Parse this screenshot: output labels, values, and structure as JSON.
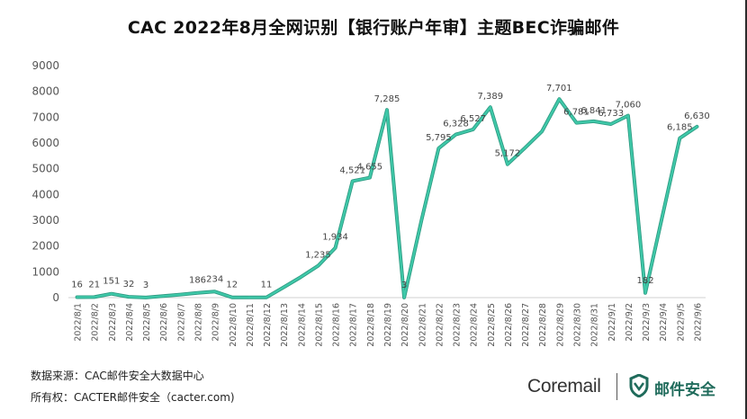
{
  "header": {
    "title": "CAC 2022年8月全网识别【银行账户年审】主题BEC诈骗邮件"
  },
  "footer": {
    "source": "数据来源：CAC邮件安全大数据中心",
    "copyright": "所有权：CACTER邮件安全（cacter.com)"
  },
  "logos": {
    "coremail": "Coremail",
    "mail_security": "邮件安全"
  },
  "chart_data": {
    "type": "line",
    "title": "CAC 2022年8月全网识别【银行账户年审】主题BEC诈骗邮件",
    "xlabel": "",
    "ylabel": "",
    "ylim": [
      0,
      9000
    ],
    "yticks": [
      0,
      1000,
      2000,
      3000,
      4000,
      5000,
      6000,
      7000,
      8000,
      9000
    ],
    "grid": false,
    "legend": "none",
    "line_color": "#3fc9a9",
    "categories": [
      "2022/8/1",
      "2022/8/2",
      "2022/8/3",
      "2022/8/4",
      "2022/8/5",
      "2022/8/6",
      "2022/8/7",
      "2022/8/8",
      "2022/8/9",
      "2022/8/10",
      "2022/8/11",
      "2022/8/12",
      "2022/8/13",
      "2022/8/14",
      "2022/8/15",
      "2022/8/16",
      "2022/8/17",
      "2022/8/18",
      "2022/8/19",
      "2022/8/20",
      "2022/8/21",
      "2022/8/22",
      "2022/8/23",
      "2022/8/24",
      "2022/8/25",
      "2022/8/26",
      "2022/8/27",
      "2022/8/28",
      "2022/8/29",
      "2022/8/30",
      "2022/8/31",
      "2022/9/1",
      "2022/9/2",
      "2022/9/3",
      "2022/9/4",
      "2022/9/5",
      "2022/9/6"
    ],
    "values": [
      16,
      21,
      151,
      32,
      3,
      60,
      120,
      186,
      234,
      12,
      8,
      11,
      400,
      800,
      1235,
      1934,
      4521,
      4655,
      7285,
      3,
      3000,
      5795,
      6328,
      6527,
      7389,
      5172,
      5800,
      6450,
      7701,
      6781,
      6841,
      6733,
      7060,
      182,
      3200,
      6185,
      6630
    ],
    "data_labels": [
      {
        "i": 0,
        "text": "16"
      },
      {
        "i": 1,
        "text": "21"
      },
      {
        "i": 2,
        "text": "151"
      },
      {
        "i": 3,
        "text": "32"
      },
      {
        "i": 4,
        "text": "3"
      },
      {
        "i": 7,
        "text": "186"
      },
      {
        "i": 8,
        "text": "234"
      },
      {
        "i": 9,
        "text": "12"
      },
      {
        "i": 11,
        "text": "11"
      },
      {
        "i": 14,
        "text": "1,235"
      },
      {
        "i": 15,
        "text": "1,934"
      },
      {
        "i": 16,
        "text": "4,521"
      },
      {
        "i": 17,
        "text": "4,655"
      },
      {
        "i": 18,
        "text": "7,285"
      },
      {
        "i": 19,
        "text": "3"
      },
      {
        "i": 21,
        "text": "5,795"
      },
      {
        "i": 22,
        "text": "6,328"
      },
      {
        "i": 23,
        "text": "6,527"
      },
      {
        "i": 24,
        "text": "7,389"
      },
      {
        "i": 25,
        "text": "5,172"
      },
      {
        "i": 28,
        "text": "7,701"
      },
      {
        "i": 29,
        "text": "6,781"
      },
      {
        "i": 30,
        "text": "6,841"
      },
      {
        "i": 31,
        "text": "6,733"
      },
      {
        "i": 32,
        "text": "7,060"
      },
      {
        "i": 33,
        "text": "182"
      },
      {
        "i": 35,
        "text": "6,185"
      },
      {
        "i": 36,
        "text": "6,630"
      }
    ]
  }
}
